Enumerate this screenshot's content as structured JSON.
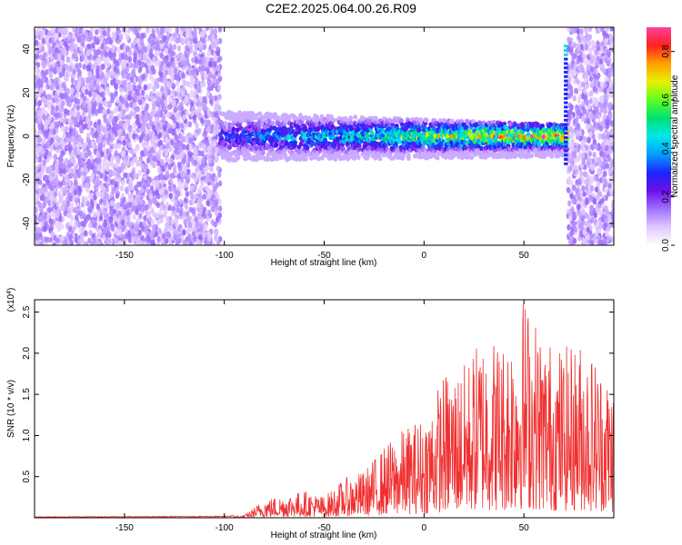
{
  "page": {
    "title": "C2E2.2025.064.00.26.R09"
  },
  "colors": {
    "colormap": [
      "#ffffff",
      "#e0c8ff",
      "#a070ff",
      "#6a10e8",
      "#1d24ff",
      "#00a0ff",
      "#00e8e8",
      "#00e070",
      "#60ff20",
      "#e8f000",
      "#ffa000",
      "#ff2020",
      "#ff40a0"
    ],
    "snr_line": "#f03030"
  },
  "chart_data": [
    {
      "type": "heatmap",
      "name": "spectrogram",
      "title": "",
      "xlabel": "Height of straight line (km)",
      "ylabel": "Frequency (Hz)",
      "xlim": [
        -195,
        95
      ],
      "ylim": [
        -50,
        50
      ],
      "xticks": [
        -150,
        -100,
        -50,
        0,
        50
      ],
      "yticks": [
        -40,
        -20,
        0,
        20,
        40
      ],
      "colorbar": {
        "label": "Normalized spectral amplitude",
        "range": [
          0,
          0.9
        ],
        "ticks": [
          0.0,
          0.2,
          0.4,
          0.6,
          0.8
        ],
        "tick_labels": [
          "0.0",
          "0.2",
          "0.4",
          "0.6",
          "0.8"
        ]
      },
      "regions": [
        {
          "kind": "noise",
          "x": [
            -195,
            -102
          ],
          "y": [
            -50,
            50
          ],
          "amplitude": 0.12
        },
        {
          "kind": "noise",
          "x": [
            72,
            95
          ],
          "y": [
            -50,
            50
          ],
          "amplitude": 0.12
        },
        {
          "kind": "signal_band",
          "x": [
            -102,
            72
          ],
          "center_hz": 0,
          "halfwidth_hz": 8,
          "amplitude_start": 0.3,
          "amplitude_end": 0.85
        },
        {
          "kind": "edge_spike",
          "x": [
            70,
            72
          ],
          "y": [
            -12,
            42
          ],
          "amplitude": 0.3
        }
      ]
    },
    {
      "type": "line",
      "name": "snr",
      "title": "",
      "xlabel": "Height of straight line (km)",
      "ylabel": "SNR (10 * v/v)",
      "y_multiplier": "(x10",
      "y_multiplier_exp": "4",
      "xlim": [
        -195,
        95
      ],
      "ylim": [
        0,
        26500
      ],
      "xticks": [
        -150,
        -100,
        -50,
        0,
        50
      ],
      "yticks": [
        5000,
        10000,
        15000,
        20000,
        25000
      ],
      "ytick_labels": [
        "0.5",
        "1.0",
        "1.5",
        "2.0",
        "2.5"
      ],
      "envelope": {
        "x": [
          -195,
          -100,
          -90,
          -80,
          -60,
          -50,
          -40,
          -30,
          -20,
          -10,
          0,
          10,
          20,
          30,
          40,
          50,
          60,
          70,
          80,
          95
        ],
        "y": [
          100,
          150,
          300,
          2200,
          3200,
          2500,
          4600,
          5500,
          8400,
          10500,
          12000,
          17000,
          18000,
          22000,
          21000,
          26500,
          21500,
          20000,
          21000,
          16000
        ]
      }
    }
  ]
}
